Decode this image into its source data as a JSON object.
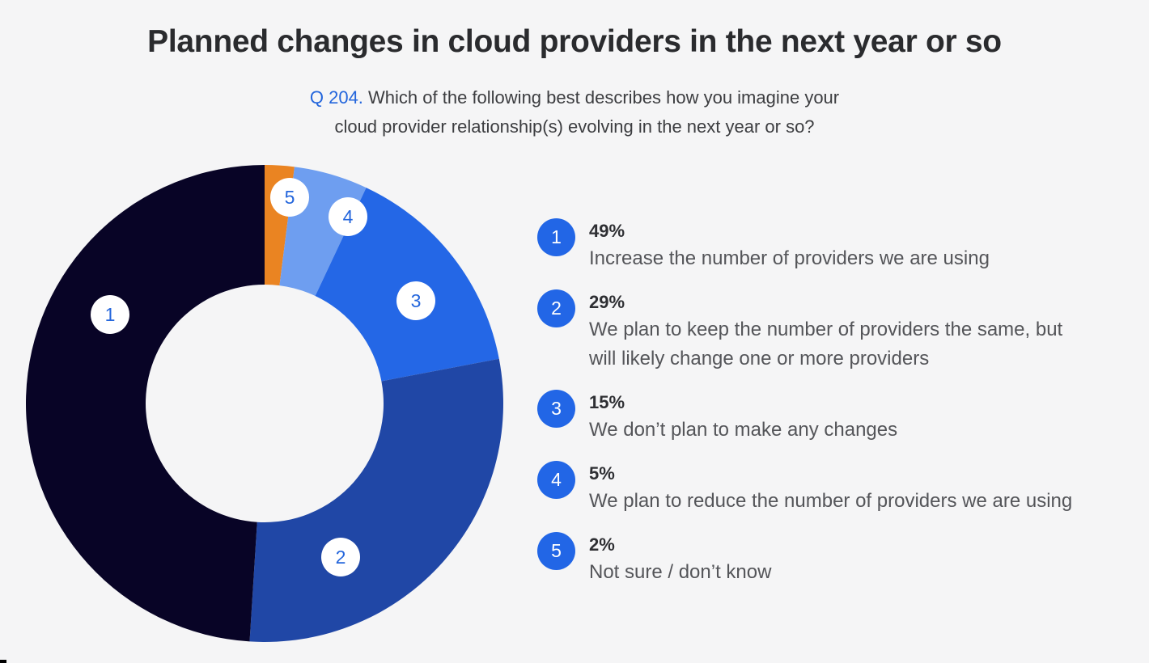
{
  "header": {
    "title": "Planned changes in cloud providers in the next year or so",
    "question_number": "Q 204.",
    "question_line1": "Which of the following best describes how you imagine your",
    "question_line2": "cloud provider relationship(s) evolving in the next year or so?"
  },
  "colors": {
    "slice1": "#080426",
    "slice2": "#2047a6",
    "slice3": "#2467e6",
    "slice4": "#6e9ef0",
    "slice5": "#ea8422",
    "badge": "#2266e6",
    "accent_text": "#2466dc",
    "background": "#f5f5f6"
  },
  "legend": [
    {
      "num": "1",
      "pct": "49%",
      "desc_line1": "Increase the number of providers we are using",
      "desc_line2": ""
    },
    {
      "num": "2",
      "pct": "29%",
      "desc_line1": "We plan to keep the number of providers the same, but",
      "desc_line2": "will likely change one or more providers"
    },
    {
      "num": "3",
      "pct": "15%",
      "desc_line1": "We don’t plan to make any changes",
      "desc_line2": ""
    },
    {
      "num": "4",
      "pct": "5%",
      "desc_line1": "We plan to reduce the number of providers we are using",
      "desc_line2": ""
    },
    {
      "num": "5",
      "pct": "2%",
      "desc_line1": "Not sure / don’t know",
      "desc_line2": ""
    }
  ],
  "chart_data": {
    "type": "pie",
    "variant": "donut",
    "title": "Planned changes in cloud providers in the next year or so",
    "subtitle": "Q 204. Which of the following best describes how you imagine your cloud provider relationship(s) evolving in the next year or so?",
    "categories": [
      "Increase the number of providers we are using",
      "We plan to keep the number of providers the same, but will likely change one or more providers",
      "We don’t plan to make any changes",
      "We plan to reduce the number of providers we are using",
      "Not sure / don’t know"
    ],
    "slice_labels": [
      "1",
      "2",
      "3",
      "4",
      "5"
    ],
    "values": [
      49,
      29,
      15,
      5,
      2
    ],
    "unit": "%",
    "slice_order_clockwise_from_top": [
      "5",
      "4",
      "3",
      "2",
      "1"
    ],
    "legend_position": "right"
  }
}
